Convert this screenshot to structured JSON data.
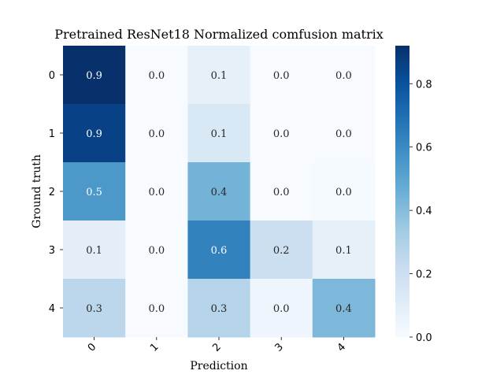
{
  "chart_data": {
    "type": "heatmap",
    "title": "Pretrained ResNet18 Normalized comfusion matrix",
    "xlabel": "Prediction",
    "ylabel": "Ground truth",
    "x_categories": [
      "0",
      "1",
      "2",
      "3",
      "4"
    ],
    "y_categories": [
      "0",
      "1",
      "2",
      "3",
      "4"
    ],
    "values": [
      [
        0.92,
        0.0,
        0.08,
        0.0,
        0.0
      ],
      [
        0.86,
        0.0,
        0.14,
        0.0,
        0.0
      ],
      [
        0.55,
        0.0,
        0.44,
        0.0,
        0.01
      ],
      [
        0.09,
        0.0,
        0.63,
        0.2,
        0.08
      ],
      [
        0.26,
        0.0,
        0.28,
        0.04,
        0.42
      ]
    ],
    "annotations": [
      [
        "0.9",
        "0.0",
        "0.1",
        "0.0",
        "0.0"
      ],
      [
        "0.9",
        "0.0",
        "0.1",
        "0.0",
        "0.0"
      ],
      [
        "0.5",
        "0.0",
        "0.4",
        "0.0",
        "0.0"
      ],
      [
        "0.1",
        "0.0",
        "0.6",
        "0.2",
        "0.1"
      ],
      [
        "0.3",
        "0.0",
        "0.3",
        "0.0",
        "0.4"
      ]
    ],
    "colorbar": {
      "range": [
        0.0,
        0.92
      ],
      "ticks": [
        "0.0",
        "0.2",
        "0.4",
        "0.6",
        "0.8"
      ],
      "tick_values": [
        0.0,
        0.2,
        0.4,
        0.6,
        0.8
      ],
      "colormap": "Blues"
    }
  }
}
